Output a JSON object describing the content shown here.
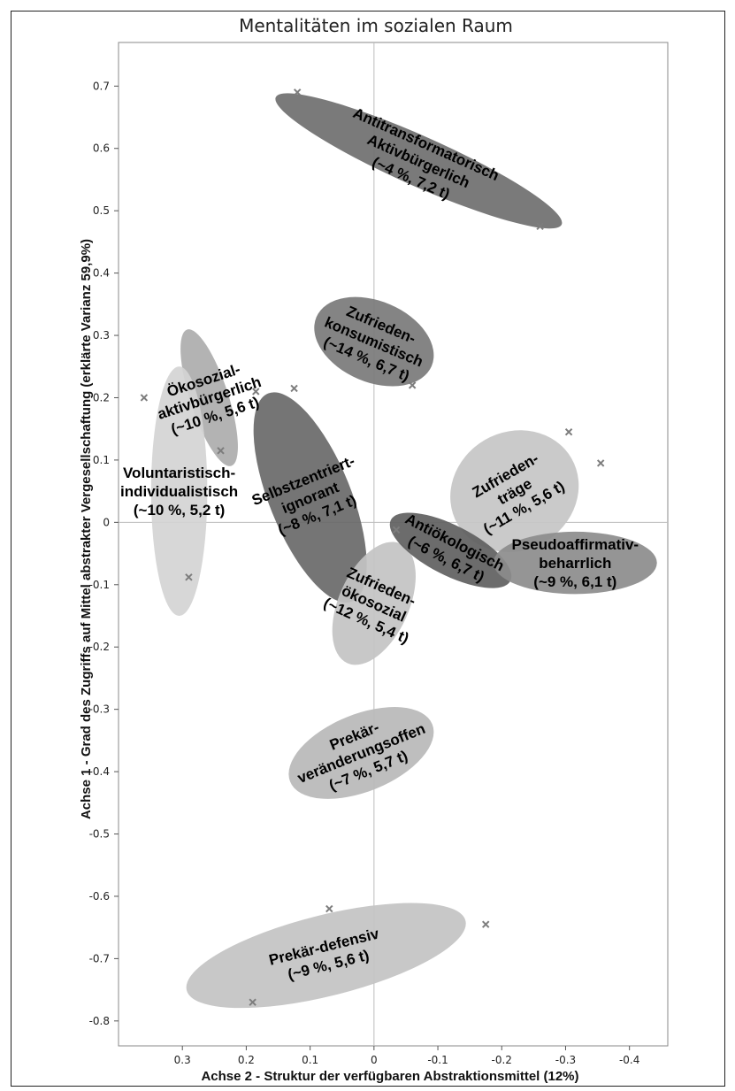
{
  "chart_data": {
    "type": "scatter",
    "title": "Mentalitäten im sozialen Raum",
    "xlabel": "Achse 2 - Struktur der verfügbaren Abstraktionsmittel (12%)",
    "ylabel": "Achse 1 - Grad des Zugriffs auf Mittel abstrakter Vergesellschaftung (erklärte Varianz 59,9%)",
    "xlim": [
      0.4,
      -0.46
    ],
    "ylim": [
      -0.84,
      0.77
    ],
    "x_reversed": true,
    "xticks": [
      0.3,
      0.2,
      0.1,
      0,
      -0.1,
      -0.2,
      -0.3,
      -0.4
    ],
    "xtick_labels": [
      "0.3",
      "0.2",
      "0.1",
      "0",
      "-0.1",
      "-0.2",
      "-0.3",
      "-0.4"
    ],
    "yticks": [
      0.7,
      0.6,
      0.5,
      0.4,
      0.3,
      0.2,
      0.1,
      0,
      -0.1,
      -0.2,
      -0.3,
      -0.4,
      -0.5,
      -0.6,
      -0.7,
      -0.8
    ],
    "ytick_labels": [
      "0.7",
      "0.6",
      "0.5",
      "0.4",
      "0.3",
      "0.2",
      "0.1",
      "0",
      "-0.1",
      "-0.2",
      "-0.3",
      "-0.4",
      "-0.5",
      "-0.6",
      "-0.7",
      "-0.8"
    ],
    "points": [
      {
        "x": 0.12,
        "y": 0.69
      },
      {
        "x": -0.26,
        "y": 0.475
      },
      {
        "x": 0.36,
        "y": 0.2
      },
      {
        "x": 0.24,
        "y": 0.115
      },
      {
        "x": 0.29,
        "y": -0.088
      },
      {
        "x": 0.185,
        "y": 0.21
      },
      {
        "x": 0.125,
        "y": 0.215
      },
      {
        "x": -0.06,
        "y": 0.22
      },
      {
        "x": -0.305,
        "y": 0.145
      },
      {
        "x": -0.355,
        "y": 0.095
      },
      {
        "x": -0.035,
        "y": -0.012
      },
      {
        "x": 0.07,
        "y": -0.62
      },
      {
        "x": -0.175,
        "y": -0.645
      },
      {
        "x": 0.19,
        "y": -0.77
      }
    ],
    "groups": [
      {
        "lines": [
          "Antitransformatorisch",
          "Aktivbürgerlich",
          "(~4 %, 7,2 t)"
        ],
        "cx": -0.07,
        "cy": 0.58,
        "rx": 0.245,
        "ry": 0.04,
        "angle": 24,
        "fill": "#6f6f6f"
      },
      {
        "lines": [
          "Zufrieden-",
          "konsumistisch",
          "(~14 %, 6,7 t)"
        ],
        "cx": 0.0,
        "cy": 0.29,
        "rx": 0.098,
        "ry": 0.065,
        "angle": 23,
        "fill": "#7a7a7a"
      },
      {
        "lines": [
          "Ökosozial-",
          "aktivbürgerlich",
          "(~10 %, 5,6 t)"
        ],
        "cx": 0.258,
        "cy": 0.2,
        "rx": 0.03,
        "ry": 0.115,
        "angle": -18,
        "fill": "#acacac"
      },
      {
        "lines": [
          "Voluntaristisch-",
          "individualistisch",
          "(~10 %, 5,2 t)"
        ],
        "cx": 0.305,
        "cy": 0.05,
        "rx": 0.044,
        "ry": 0.2,
        "angle": 0,
        "fill": "#d4d4d4"
      },
      {
        "lines": [
          "Selbstzentriert-",
          "ignorant",
          "(~8 %, 7,1 t)"
        ],
        "cx": 0.1,
        "cy": 0.04,
        "rx": 0.064,
        "ry": 0.18,
        "angle": -22,
        "fill": "#696969"
      },
      {
        "lines": [
          "Zufrieden-",
          "träge",
          "(~11 %, 5,6 t)"
        ],
        "cx": -0.22,
        "cy": 0.05,
        "rx": 0.103,
        "ry": 0.095,
        "angle": -30,
        "fill": "#c6c6c6"
      },
      {
        "lines": [
          "Zufrieden-",
          "ökosozial",
          "(~12 %, 5,4 t)"
        ],
        "cx": 0.0,
        "cy": -0.13,
        "rx": 0.055,
        "ry": 0.105,
        "angle": 24,
        "fill": "#c3c3c3"
      },
      {
        "lines": [
          "Antiökologisch",
          "(~6 %, 6,7 t)"
        ],
        "cx": -0.12,
        "cy": -0.045,
        "rx": 0.105,
        "ry": 0.04,
        "angle": 27,
        "fill": "#5f5f5f"
      },
      {
        "lines": [
          "Pseudoaffirmativ-",
          "beharrlich",
          "(~9 %, 6,1 t)"
        ],
        "cx": -0.315,
        "cy": -0.065,
        "rx": 0.128,
        "ry": 0.05,
        "angle": 0,
        "fill": "#8c8c8c"
      },
      {
        "lines": [
          "Prekär-",
          "veränderungsoffen",
          "(~7 %, 5,7 t)"
        ],
        "cx": 0.02,
        "cy": -0.37,
        "rx": 0.12,
        "ry": 0.062,
        "angle": -22,
        "fill": "#b8b8b8"
      },
      {
        "lines": [
          "Prekär-defensiv",
          "(~9 %, 5,6 t)"
        ],
        "cx": 0.075,
        "cy": -0.695,
        "rx": 0.225,
        "ry": 0.065,
        "angle": -14,
        "fill": "#c3c3c3"
      }
    ]
  }
}
